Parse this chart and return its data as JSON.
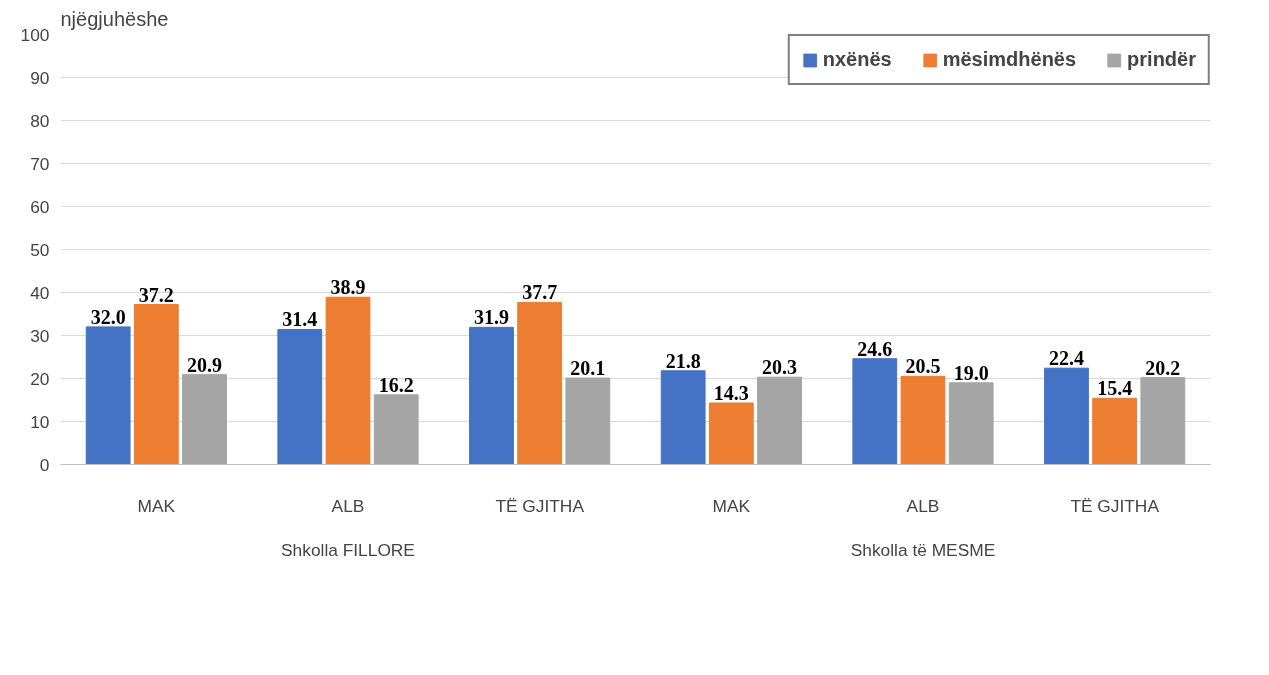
{
  "chart_data": {
    "type": "bar",
    "ylabel": "njëgjuhëshe",
    "categories": [
      "MAK",
      "ALB",
      "TË GJITHA",
      "MAK",
      "ALB",
      "TË GJITHA"
    ],
    "annotations": [
      "Shkolla FILLORE",
      "Shkolla të MESME"
    ],
    "series": [
      {
        "name": "nxënës",
        "color": "#4472c4",
        "values": [
          32.0,
          31.4,
          31.9,
          21.8,
          24.6,
          22.4
        ],
        "value_labels": [
          "32.0",
          "31.4",
          "31.9",
          "21.8",
          "24.6",
          "22.4"
        ]
      },
      {
        "name": "mësimdhënës",
        "color": "#ed7d31",
        "values": [
          37.2,
          38.9,
          37.7,
          14.3,
          20.5,
          15.4
        ],
        "value_labels": [
          "37.2",
          "38.9",
          "37.7",
          "14.3",
          "20.5",
          "15.4"
        ]
      },
      {
        "name": "prindër",
        "color": "#a5a5a5",
        "values": [
          20.9,
          16.2,
          20.1,
          20.3,
          19.0,
          20.2
        ],
        "value_labels": [
          "20.9",
          "16.2",
          "20.1",
          "20.3",
          "19.0",
          "20.2"
        ]
      }
    ],
    "ylim": [
      0,
      100
    ],
    "yticks": [
      0,
      10,
      20,
      30,
      40,
      50,
      60,
      70,
      80,
      90,
      100
    ],
    "grid": "y",
    "legend": "top right"
  }
}
